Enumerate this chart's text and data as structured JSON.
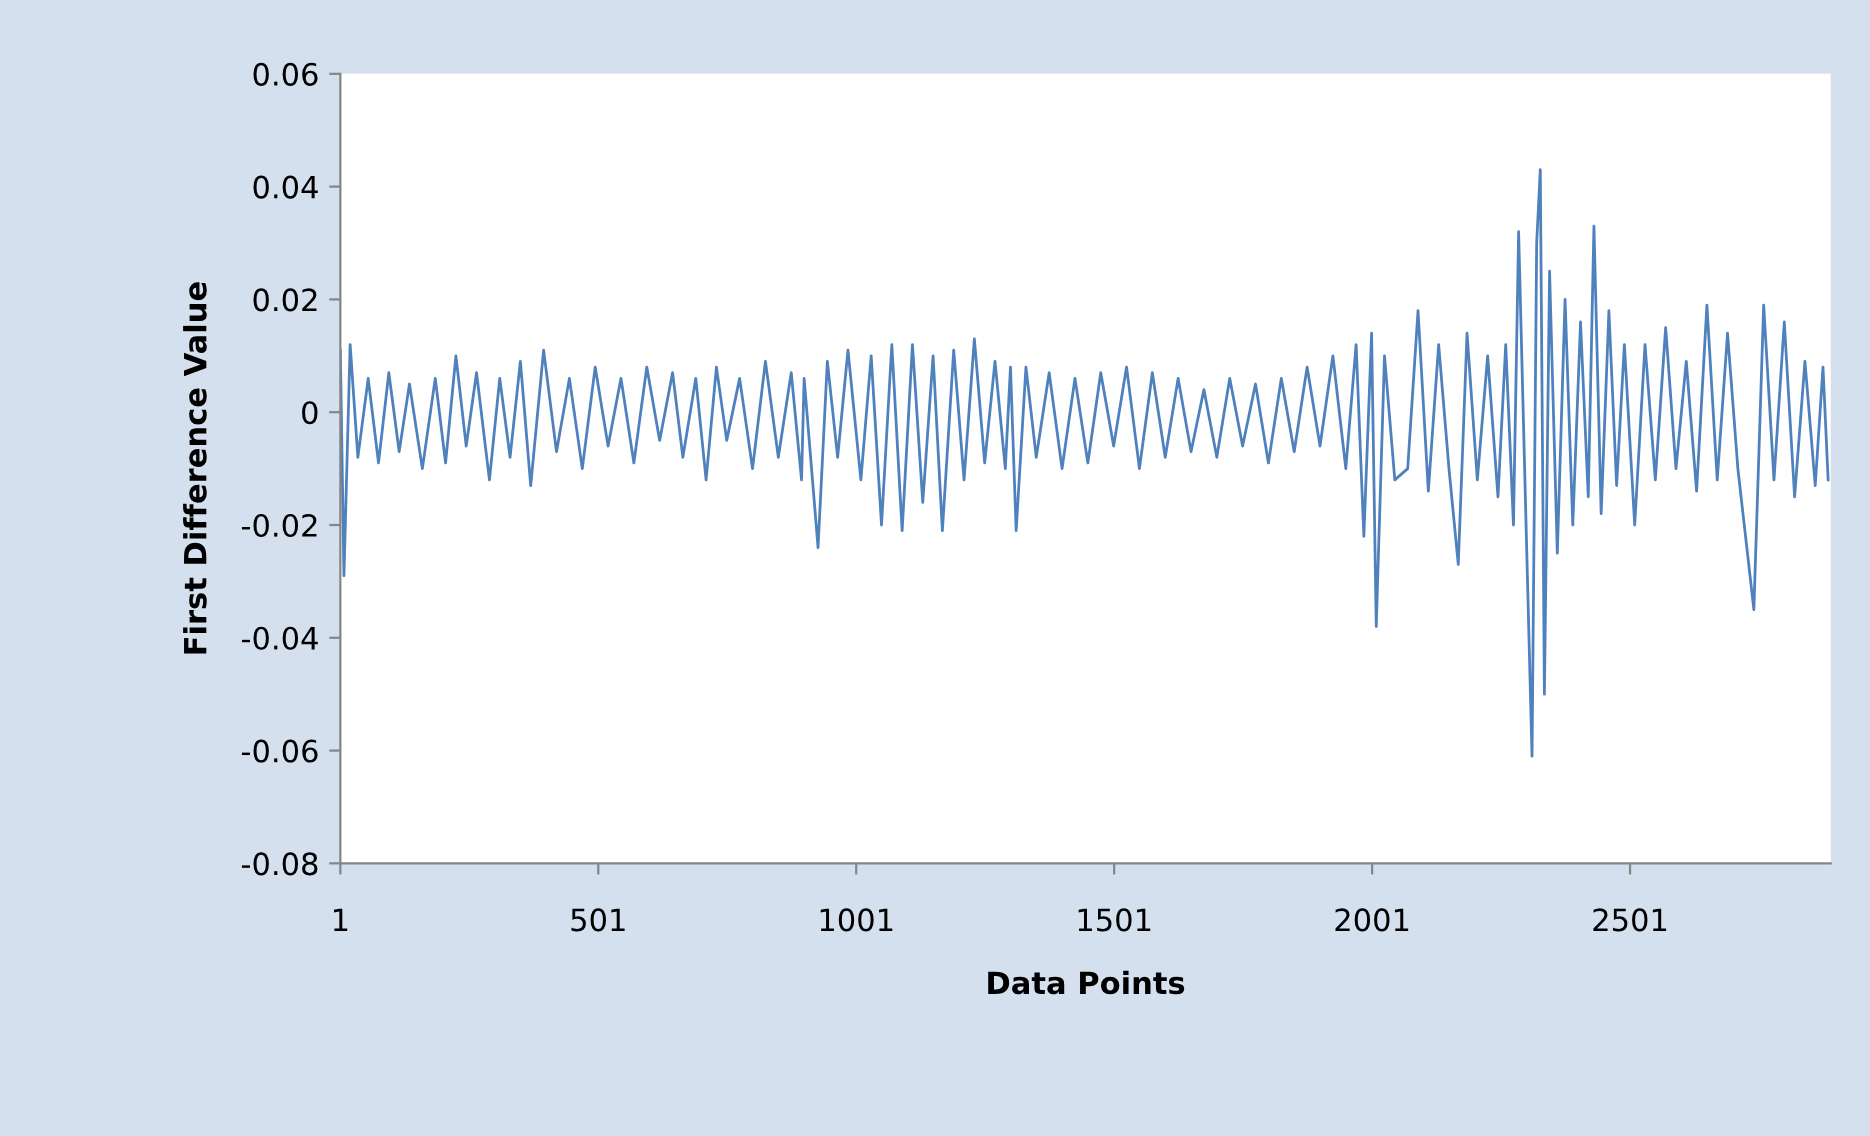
{
  "chart_data": {
    "type": "line",
    "xlabel": "Data Points",
    "ylabel": "First Difference Value",
    "xlim": [
      1,
      2890
    ],
    "xticks": [
      1,
      501,
      1001,
      1501,
      2001,
      2501
    ],
    "ylim": [
      -0.08,
      0.06
    ],
    "yticks": [
      -0.08,
      -0.06,
      -0.04,
      -0.02,
      0,
      0.02,
      0.04,
      0.06
    ],
    "grid": false,
    "marker": "none",
    "line_style": "solid",
    "series": [
      {
        "color": "#4f81bd",
        "x": [
          1,
          8,
          20,
          35,
          55,
          75,
          95,
          115,
          135,
          160,
          185,
          205,
          225,
          245,
          265,
          290,
          310,
          330,
          350,
          370,
          395,
          420,
          445,
          470,
          495,
          520,
          545,
          570,
          595,
          620,
          645,
          665,
          690,
          710,
          730,
          750,
          775,
          800,
          825,
          850,
          875,
          895,
          900,
          927,
          945,
          965,
          985,
          1010,
          1030,
          1050,
          1070,
          1090,
          1110,
          1130,
          1150,
          1168,
          1190,
          1210,
          1230,
          1250,
          1270,
          1290,
          1300,
          1311,
          1330,
          1350,
          1375,
          1400,
          1425,
          1450,
          1475,
          1500,
          1525,
          1550,
          1575,
          1600,
          1625,
          1650,
          1675,
          1700,
          1725,
          1750,
          1775,
          1800,
          1825,
          1850,
          1875,
          1900,
          1925,
          1950,
          1970,
          1985,
          2000,
          2009,
          2025,
          2045,
          2070,
          2090,
          2110,
          2130,
          2150,
          2168,
          2185,
          2205,
          2225,
          2245,
          2260,
          2275,
          2285,
          2300,
          2311,
          2320,
          2327,
          2335,
          2345,
          2360,
          2375,
          2390,
          2405,
          2420,
          2431,
          2445,
          2460,
          2475,
          2490,
          2510,
          2530,
          2550,
          2570,
          2590,
          2610,
          2630,
          2650,
          2670,
          2690,
          2710,
          2741,
          2760,
          2780,
          2800,
          2820,
          2840,
          2860,
          2875,
          2885
        ],
        "values": [
          0.011,
          -0.029,
          0.012,
          -0.008,
          0.006,
          -0.009,
          0.007,
          -0.007,
          0.005,
          -0.01,
          0.006,
          -0.009,
          0.01,
          -0.006,
          0.007,
          -0.012,
          0.006,
          -0.008,
          0.009,
          -0.013,
          0.011,
          -0.007,
          0.006,
          -0.01,
          0.008,
          -0.006,
          0.006,
          -0.009,
          0.008,
          -0.005,
          0.007,
          -0.008,
          0.006,
          -0.012,
          0.008,
          -0.005,
          0.006,
          -0.01,
          0.009,
          -0.008,
          0.007,
          -0.012,
          0.006,
          -0.024,
          0.009,
          -0.008,
          0.011,
          -0.012,
          0.01,
          -0.02,
          0.012,
          -0.021,
          0.012,
          -0.016,
          0.01,
          -0.021,
          0.011,
          -0.012,
          0.013,
          -0.009,
          0.009,
          -0.01,
          0.008,
          -0.021,
          0.008,
          -0.008,
          0.007,
          -0.01,
          0.006,
          -0.009,
          0.007,
          -0.006,
          0.008,
          -0.01,
          0.007,
          -0.008,
          0.006,
          -0.007,
          0.004,
          -0.008,
          0.006,
          -0.006,
          0.005,
          -0.009,
          0.006,
          -0.007,
          0.008,
          -0.006,
          0.01,
          -0.01,
          0.012,
          -0.022,
          0.014,
          -0.038,
          0.01,
          -0.012,
          -0.01,
          0.018,
          -0.014,
          0.012,
          -0.01,
          -0.027,
          0.014,
          -0.012,
          0.01,
          -0.015,
          0.012,
          -0.02,
          0.032,
          -0.022,
          -0.061,
          0.03,
          0.043,
          -0.05,
          0.025,
          -0.025,
          0.02,
          -0.02,
          0.016,
          -0.015,
          0.033,
          -0.018,
          0.018,
          -0.013,
          0.012,
          -0.02,
          0.012,
          -0.012,
          0.015,
          -0.01,
          0.009,
          -0.014,
          0.019,
          -0.012,
          0.014,
          -0.01,
          -0.035,
          0.019,
          -0.012,
          0.016,
          -0.015,
          0.009,
          -0.013,
          0.008,
          -0.012
        ]
      }
    ]
  }
}
